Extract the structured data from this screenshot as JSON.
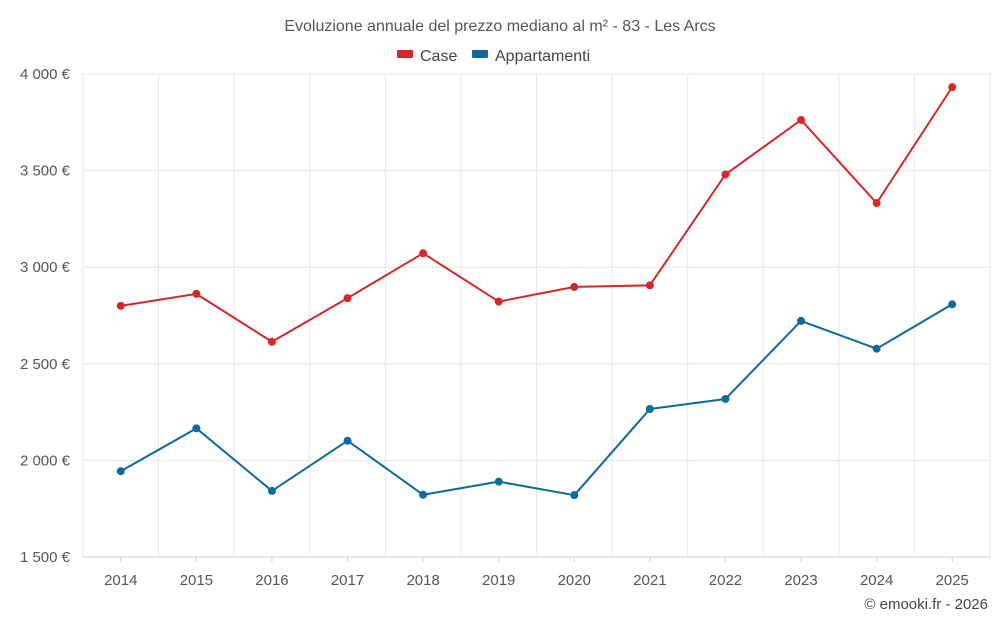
{
  "chart_data": {
    "type": "line",
    "title": "Evoluzione annuale del prezzo mediano al m² - 83 - Les Arcs",
    "categories": [
      "2014",
      "2015",
      "2016",
      "2017",
      "2018",
      "2019",
      "2020",
      "2021",
      "2022",
      "2023",
      "2024",
      "2025"
    ],
    "series": [
      {
        "name": "Case",
        "color": "#d62728",
        "values": [
          2800,
          2862,
          2614,
          2840,
          3072,
          2822,
          2898,
          2906,
          3480,
          3762,
          3332,
          3932
        ]
      },
      {
        "name": "Appartamenti",
        "color": "#0d6a9c",
        "values": [
          1944,
          2166,
          1842,
          2102,
          1822,
          1890,
          1820,
          2266,
          2318,
          2722,
          2578,
          2808
        ]
      }
    ],
    "ylim": [
      1500,
      4000
    ],
    "yticks": [
      1500,
      2000,
      2500,
      3000,
      3500,
      4000
    ],
    "ytick_labels": [
      "1 500 €",
      "2 000 €",
      "2 500 €",
      "3 000 €",
      "3 500 €",
      "4 000 €"
    ],
    "xlabel": "",
    "ylabel": "",
    "grid": true,
    "legend_position": "top-center",
    "credit": "© emooki.fr - 2026"
  }
}
